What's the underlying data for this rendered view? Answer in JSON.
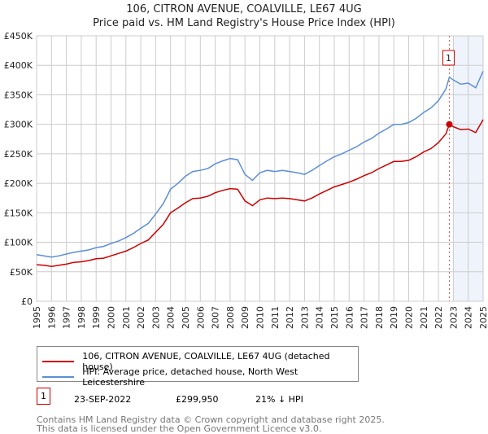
{
  "header": {
    "title": "106, CITRON AVENUE, COALVILLE, LE67 4UG",
    "subtitle": "Price paid vs. HM Land Registry's House Price Index (HPI)"
  },
  "chart_data": {
    "type": "line",
    "title": "106, CITRON AVENUE, COALVILLE, LE67 4UG",
    "subtitle": "Price paid vs. HM Land Registry's House Price Index (HPI)",
    "xlim": [
      1995,
      2025
    ],
    "ylim": [
      0,
      450000
    ],
    "x_ticks": [
      "1995",
      "1996",
      "1997",
      "1998",
      "1999",
      "2000",
      "2001",
      "2002",
      "2003",
      "2004",
      "2005",
      "2006",
      "2007",
      "2008",
      "2009",
      "2010",
      "2011",
      "2012",
      "2013",
      "2014",
      "2015",
      "2016",
      "2017",
      "2018",
      "2019",
      "2020",
      "2021",
      "2022",
      "2023",
      "2024",
      "2025"
    ],
    "y_ticks": [
      {
        "v": 0,
        "label": "£0"
      },
      {
        "v": 50000,
        "label": "£50K"
      },
      {
        "v": 100000,
        "label": "£100K"
      },
      {
        "v": 150000,
        "label": "£150K"
      },
      {
        "v": 200000,
        "label": "£200K"
      },
      {
        "v": 250000,
        "label": "£250K"
      },
      {
        "v": 300000,
        "label": "£300K"
      },
      {
        "v": 350000,
        "label": "£350K"
      },
      {
        "v": 400000,
        "label": "£400K"
      },
      {
        "v": 450000,
        "label": "£450K"
      }
    ],
    "grid": true,
    "x": [
      1995,
      1995.5,
      1996,
      1996.5,
      1997,
      1997.5,
      1998,
      1998.5,
      1999,
      1999.5,
      2000,
      2000.5,
      2001,
      2001.5,
      2002,
      2002.5,
      2003,
      2003.5,
      2004,
      2004.5,
      2005,
      2005.5,
      2006,
      2006.5,
      2007,
      2007.5,
      2008,
      2008.5,
      2009,
      2009.5,
      2010,
      2010.5,
      2011,
      2011.5,
      2012,
      2012.5,
      2013,
      2013.5,
      2014,
      2014.5,
      2015,
      2015.5,
      2016,
      2016.5,
      2017,
      2017.5,
      2018,
      2018.5,
      2019,
      2019.5,
      2020,
      2020.5,
      2021,
      2021.5,
      2022,
      2022.5,
      2022.73,
      2023,
      2023.5,
      2024,
      2024.5,
      2025
    ],
    "series": [
      {
        "name": "106, CITRON AVENUE, COALVILLE, LE67 4UG (detached house)",
        "color": "#cc0000",
        "values": [
          62000,
          61000,
          59000,
          61000,
          63000,
          66000,
          67000,
          69000,
          72000,
          73000,
          77000,
          81000,
          85000,
          91000,
          98000,
          104000,
          117000,
          130000,
          150000,
          158000,
          167000,
          174000,
          175000,
          178000,
          184000,
          188000,
          191000,
          190000,
          170000,
          162000,
          172000,
          175000,
          174000,
          175000,
          174000,
          172000,
          170000,
          175000,
          182000,
          188000,
          194000,
          198000,
          202000,
          207000,
          213000,
          218000,
          225000,
          231000,
          237000,
          237000,
          239000,
          245000,
          253000,
          259000,
          269000,
          284000,
          299950,
          296000,
          291000,
          292000,
          286000,
          308000
        ]
      },
      {
        "name": "HPI: Average price, detached house, North West Leicestershire",
        "color": "#5b8fd4",
        "values": [
          79000,
          77000,
          75000,
          77000,
          80000,
          83000,
          85000,
          87000,
          91000,
          93000,
          98000,
          102000,
          108000,
          115000,
          124000,
          132000,
          148000,
          165000,
          190000,
          200000,
          212000,
          220000,
          222000,
          225000,
          233000,
          238000,
          242000,
          240000,
          215000,
          205000,
          218000,
          222000,
          220000,
          222000,
          220000,
          218000,
          215000,
          222000,
          230000,
          238000,
          245000,
          250000,
          256000,
          262000,
          270000,
          276000,
          285000,
          292000,
          300000,
          300000,
          303000,
          310000,
          320000,
          328000,
          340000,
          360000,
          380000,
          375000,
          368000,
          370000,
          362000,
          390000
        ]
      }
    ],
    "annotations": [
      {
        "label": "1",
        "x": 2022.73,
        "y": 299950
      }
    ],
    "shaded_range": [
      2023,
      2025
    ],
    "legend_position": "below"
  },
  "legend": {
    "items": [
      "106, CITRON AVENUE, COALVILLE, LE67 4UG (detached house)",
      "HPI: Average price, detached house, North West Leicestershire"
    ]
  },
  "transactions": [
    {
      "num": "1",
      "date": "23-SEP-2022",
      "price": "£299,950",
      "hpi": "21% ↓ HPI"
    }
  ],
  "footer": {
    "line1": "Contains HM Land Registry data © Crown copyright and database right 2025.",
    "line2": "This data is licensed under the Open Government Licence v3.0."
  }
}
